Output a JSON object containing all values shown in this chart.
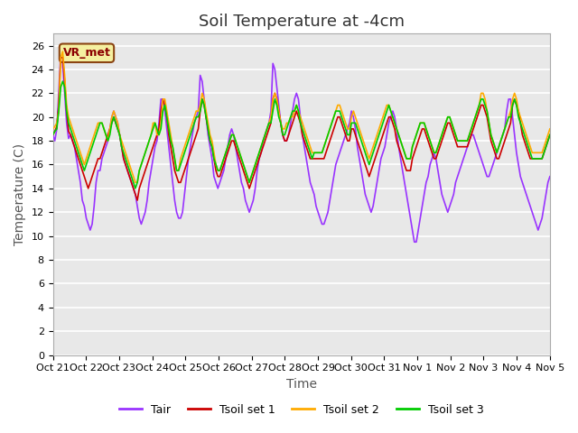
{
  "title": "Soil Temperature at -4cm",
  "xlabel": "Time",
  "ylabel": "Temperature (C)",
  "ylim": [
    0,
    27
  ],
  "yticks": [
    0,
    2,
    4,
    6,
    8,
    10,
    12,
    14,
    16,
    18,
    20,
    22,
    24,
    26
  ],
  "xlabels": [
    "Oct 21",
    "Oct 22",
    "Oct 23",
    "Oct 24",
    "Oct 25",
    "Oct 26",
    "Oct 27",
    "Oct 28",
    "Oct 29",
    "Oct 30",
    "Oct 31",
    "Nov 1",
    "Nov 2",
    "Nov 3",
    "Nov 4",
    "Nov 5"
  ],
  "color_tair": "#9933ff",
  "color_tsoil1": "#cc0000",
  "color_tsoil2": "#ffaa00",
  "color_tsoil3": "#00cc00",
  "label_tair": "Tair",
  "label_tsoil1": "Tsoil set 1",
  "label_tsoil2": "Tsoil set 2",
  "label_tsoil3": "Tsoil set 3",
  "vr_met_label": "VR_met",
  "plot_bg_color": "#e8e8e8",
  "grid_color": "#ffffff",
  "title_fontsize": 13,
  "axis_label_fontsize": 10,
  "tick_fontsize": 8,
  "legend_fontsize": 9,
  "line_width": 1.2,
  "tair": [
    18.5,
    18.0,
    19.0,
    22.0,
    25.5,
    24.5,
    22.0,
    19.5,
    18.2,
    18.5,
    18.0,
    17.5,
    16.5,
    15.5,
    14.5,
    13.0,
    12.5,
    11.5,
    11.0,
    10.5,
    11.0,
    12.5,
    14.5,
    15.5,
    15.5,
    16.5,
    17.0,
    17.5,
    18.0,
    19.0,
    20.0,
    20.5,
    20.0,
    19.5,
    18.5,
    17.5,
    16.5,
    16.0,
    15.5,
    15.0,
    14.5,
    14.0,
    13.5,
    12.5,
    11.5,
    11.0,
    11.5,
    12.0,
    13.0,
    14.5,
    15.5,
    16.5,
    17.5,
    18.0,
    19.5,
    21.5,
    21.5,
    20.5,
    19.0,
    17.5,
    16.0,
    14.5,
    13.0,
    12.0,
    11.5,
    11.5,
    12.0,
    13.5,
    15.0,
    16.5,
    17.5,
    18.5,
    19.5,
    20.0,
    20.5,
    23.5,
    23.0,
    21.5,
    20.0,
    18.5,
    17.5,
    16.5,
    15.0,
    14.5,
    14.0,
    14.5,
    15.0,
    15.5,
    16.5,
    17.5,
    18.5,
    19.0,
    18.5,
    17.5,
    16.5,
    15.5,
    14.5,
    14.0,
    13.0,
    12.5,
    12.0,
    12.5,
    13.0,
    14.0,
    15.5,
    16.5,
    17.0,
    18.0,
    18.5,
    19.0,
    19.5,
    20.5,
    24.5,
    24.0,
    22.5,
    21.0,
    19.5,
    18.5,
    18.0,
    18.0,
    18.5,
    19.5,
    20.5,
    21.5,
    22.0,
    21.5,
    20.0,
    18.5,
    17.5,
    16.5,
    15.5,
    14.5,
    14.0,
    13.5,
    12.5,
    12.0,
    11.5,
    11.0,
    11.0,
    11.5,
    12.0,
    13.0,
    14.0,
    15.0,
    16.0,
    16.5,
    17.0,
    17.5,
    18.0,
    18.5,
    19.0,
    19.5,
    20.5,
    20.0,
    19.0,
    17.5,
    16.5,
    15.5,
    14.5,
    13.5,
    13.0,
    12.5,
    12.0,
    12.5,
    13.5,
    14.5,
    15.5,
    16.5,
    17.0,
    17.5,
    18.5,
    19.5,
    20.0,
    20.5,
    20.0,
    19.0,
    17.5,
    16.5,
    15.5,
    14.5,
    13.5,
    12.5,
    11.5,
    10.5,
    9.5,
    9.5,
    10.5,
    11.5,
    12.5,
    13.5,
    14.5,
    15.0,
    16.0,
    16.5,
    17.0,
    16.5,
    15.5,
    14.5,
    13.5,
    13.0,
    12.5,
    12.0,
    12.5,
    13.0,
    13.5,
    14.5,
    15.0,
    15.5,
    16.0,
    16.5,
    17.0,
    17.5,
    18.0,
    18.5,
    18.5,
    18.0,
    17.5,
    17.0,
    16.5,
    16.0,
    15.5,
    15.0,
    15.0,
    15.5,
    16.0,
    16.5,
    17.0,
    17.5,
    18.0,
    18.5,
    19.0,
    20.5,
    21.5,
    21.5,
    20.0,
    18.5,
    17.0,
    16.0,
    15.0,
    14.5,
    14.0,
    13.5,
    13.0,
    12.5,
    12.0,
    11.5,
    11.0,
    10.5,
    11.0,
    11.5,
    12.5,
    13.5,
    14.5,
    15.0,
    16.0,
    16.5,
    17.0,
    17.5,
    18.5,
    19.5,
    21.5,
    22.0,
    21.5,
    20.0,
    18.5,
    17.5,
    16.5,
    15.5,
    14.5,
    14.0,
    13.5,
    13.0,
    12.5,
    12.0,
    11.5,
    11.0,
    10.5,
    10.0,
    10.5,
    11.5,
    12.5,
    13.5,
    14.5
  ],
  "tsoil1": [
    18.5,
    18.8,
    19.2,
    21.0,
    25.0,
    25.0,
    23.0,
    20.5,
    18.8,
    18.5,
    18.0,
    17.5,
    17.0,
    16.5,
    16.0,
    15.5,
    15.0,
    14.5,
    14.0,
    14.5,
    15.0,
    15.5,
    16.0,
    16.5,
    16.5,
    17.0,
    17.5,
    18.0,
    18.5,
    19.0,
    19.5,
    20.0,
    19.5,
    19.0,
    18.5,
    17.5,
    16.5,
    16.0,
    15.5,
    15.0,
    14.5,
    14.0,
    13.5,
    13.0,
    14.0,
    14.5,
    15.0,
    15.5,
    16.0,
    16.5,
    17.0,
    17.5,
    18.0,
    18.5,
    19.0,
    20.5,
    21.5,
    21.0,
    20.0,
    18.5,
    17.5,
    16.5,
    15.5,
    15.0,
    14.5,
    14.5,
    15.0,
    15.5,
    16.0,
    16.5,
    17.0,
    17.5,
    18.0,
    18.5,
    19.0,
    20.5,
    21.5,
    21.0,
    20.0,
    19.0,
    18.0,
    17.5,
    16.5,
    15.5,
    15.0,
    15.0,
    15.5,
    16.0,
    16.5,
    17.0,
    17.5,
    18.0,
    18.0,
    17.5,
    17.0,
    16.5,
    16.0,
    15.5,
    15.0,
    14.5,
    14.0,
    14.5,
    15.0,
    15.5,
    16.0,
    16.5,
    17.0,
    17.5,
    18.0,
    18.5,
    19.0,
    19.5,
    21.5,
    22.0,
    21.5,
    20.5,
    19.5,
    18.5,
    18.0,
    18.0,
    18.5,
    19.0,
    19.5,
    20.0,
    20.5,
    20.0,
    19.5,
    18.5,
    18.0,
    17.5,
    17.0,
    16.5,
    16.5,
    16.5,
    16.5,
    16.5,
    16.5,
    16.5,
    16.5,
    17.0,
    17.5,
    18.0,
    18.5,
    19.0,
    19.5,
    20.0,
    20.0,
    19.5,
    19.0,
    18.5,
    18.0,
    18.0,
    19.0,
    19.0,
    18.5,
    18.0,
    17.5,
    17.0,
    16.5,
    16.0,
    15.5,
    15.0,
    15.5,
    16.0,
    16.5,
    17.0,
    17.5,
    18.0,
    18.5,
    19.0,
    19.5,
    20.0,
    20.0,
    19.5,
    19.0,
    18.0,
    17.5,
    17.0,
    16.5,
    16.0,
    15.5,
    15.5,
    15.5,
    16.5,
    17.0,
    17.5,
    18.0,
    18.5,
    19.0,
    19.0,
    18.5,
    18.0,
    17.5,
    17.0,
    16.5,
    16.5,
    17.0,
    17.5,
    18.0,
    18.5,
    19.0,
    19.5,
    19.5,
    19.0,
    18.5,
    18.0,
    17.5,
    17.5,
    17.5,
    17.5,
    17.5,
    17.5,
    18.0,
    18.5,
    19.0,
    19.5,
    20.0,
    20.5,
    21.0,
    21.0,
    20.5,
    20.0,
    19.0,
    18.0,
    17.5,
    17.0,
    16.5,
    16.5,
    17.0,
    17.5,
    18.0,
    18.5,
    19.0,
    19.5,
    21.0,
    21.5,
    21.0,
    20.5,
    19.5,
    18.5,
    18.0,
    17.5,
    17.0,
    16.5,
    16.5,
    16.5,
    16.5,
    16.5,
    16.5,
    16.5,
    17.0,
    17.5,
    18.0,
    18.5
  ],
  "tsoil2": [
    19.0,
    19.2,
    19.5,
    20.5,
    25.0,
    25.5,
    23.5,
    21.0,
    20.0,
    19.5,
    19.0,
    18.5,
    18.0,
    17.5,
    17.0,
    16.5,
    16.0,
    16.5,
    17.0,
    17.5,
    18.0,
    18.5,
    19.0,
    19.5,
    19.5,
    19.5,
    19.0,
    18.5,
    18.0,
    19.0,
    20.0,
    20.5,
    20.0,
    19.5,
    18.5,
    18.0,
    17.5,
    17.0,
    16.5,
    16.0,
    15.5,
    15.0,
    14.5,
    14.5,
    15.5,
    16.0,
    16.5,
    17.0,
    17.5,
    18.0,
    18.5,
    19.5,
    19.5,
    18.5,
    18.5,
    19.5,
    21.5,
    21.5,
    20.5,
    19.5,
    18.5,
    17.5,
    16.5,
    15.5,
    15.5,
    16.5,
    17.0,
    17.5,
    18.0,
    18.5,
    19.0,
    19.5,
    20.0,
    20.5,
    20.5,
    21.0,
    22.0,
    21.5,
    20.5,
    19.5,
    18.5,
    18.0,
    17.0,
    16.0,
    15.5,
    15.5,
    16.0,
    16.5,
    17.0,
    17.5,
    18.0,
    18.5,
    18.5,
    18.0,
    17.5,
    17.0,
    16.5,
    16.0,
    15.5,
    15.0,
    14.5,
    15.0,
    15.5,
    16.0,
    16.5,
    17.0,
    17.5,
    18.0,
    18.5,
    19.0,
    19.5,
    20.0,
    21.5,
    22.0,
    21.5,
    20.5,
    19.5,
    19.0,
    19.0,
    19.5,
    19.5,
    20.0,
    20.0,
    20.5,
    21.0,
    20.5,
    20.0,
    19.5,
    19.0,
    18.5,
    18.0,
    17.5,
    17.0,
    17.0,
    17.0,
    17.0,
    17.0,
    17.0,
    17.5,
    18.0,
    18.5,
    19.0,
    19.5,
    20.0,
    20.5,
    21.0,
    21.0,
    20.5,
    20.0,
    19.5,
    19.0,
    19.0,
    20.0,
    20.5,
    20.0,
    19.5,
    19.0,
    18.5,
    18.0,
    17.5,
    17.0,
    16.5,
    17.0,
    17.5,
    18.0,
    18.5,
    19.0,
    19.5,
    20.0,
    20.5,
    21.0,
    21.0,
    20.5,
    20.0,
    19.5,
    19.0,
    18.5,
    18.0,
    17.5,
    17.0,
    16.5,
    16.5,
    16.5,
    17.5,
    18.0,
    18.5,
    19.0,
    19.5,
    19.5,
    19.5,
    19.0,
    18.5,
    18.0,
    17.5,
    17.0,
    17.0,
    17.5,
    18.0,
    18.5,
    19.0,
    19.5,
    20.0,
    20.0,
    19.5,
    19.0,
    18.5,
    18.0,
    18.0,
    18.0,
    18.0,
    18.0,
    18.0,
    18.5,
    19.0,
    19.5,
    20.0,
    20.5,
    21.0,
    22.0,
    22.0,
    21.5,
    20.5,
    19.5,
    18.5,
    18.0,
    17.5,
    17.0,
    17.5,
    18.0,
    18.5,
    19.0,
    19.5,
    20.0,
    20.5,
    21.5,
    22.0,
    21.5,
    20.5,
    20.0,
    19.5,
    19.0,
    18.5,
    18.0,
    17.5,
    17.0,
    17.0,
    17.0,
    17.0,
    17.0,
    17.0,
    17.5,
    18.0,
    18.5,
    19.0
  ],
  "tsoil3": [
    18.5,
    18.8,
    19.0,
    20.5,
    22.5,
    23.0,
    22.5,
    20.5,
    19.5,
    19.0,
    18.5,
    18.0,
    17.5,
    17.0,
    16.5,
    16.0,
    15.5,
    16.0,
    16.5,
    17.0,
    17.5,
    18.0,
    18.5,
    19.0,
    19.5,
    19.5,
    19.0,
    18.5,
    18.0,
    18.5,
    19.5,
    20.0,
    19.5,
    19.0,
    18.5,
    17.5,
    17.0,
    16.5,
    16.0,
    15.5,
    15.0,
    14.5,
    14.0,
    14.5,
    15.5,
    16.0,
    16.5,
    17.0,
    17.5,
    18.0,
    18.5,
    19.0,
    19.5,
    19.0,
    18.5,
    19.0,
    20.5,
    21.0,
    20.0,
    19.0,
    18.0,
    17.5,
    16.5,
    15.5,
    15.5,
    16.0,
    16.5,
    17.0,
    17.5,
    18.0,
    18.5,
    19.0,
    19.5,
    20.0,
    20.0,
    20.5,
    21.5,
    21.0,
    20.0,
    19.0,
    18.0,
    17.5,
    16.5,
    16.0,
    15.5,
    15.5,
    16.0,
    16.5,
    17.0,
    17.5,
    18.0,
    18.5,
    18.5,
    18.0,
    17.5,
    17.0,
    16.5,
    16.0,
    15.5,
    15.0,
    14.5,
    15.0,
    15.5,
    16.0,
    16.5,
    17.0,
    17.5,
    18.0,
    18.5,
    19.0,
    19.5,
    19.5,
    20.5,
    21.5,
    21.0,
    20.0,
    19.5,
    18.5,
    18.5,
    19.0,
    19.5,
    20.0,
    20.5,
    20.5,
    21.0,
    20.5,
    19.5,
    19.0,
    18.5,
    18.0,
    17.5,
    17.0,
    16.5,
    17.0,
    17.0,
    17.0,
    17.0,
    17.0,
    17.5,
    18.0,
    18.5,
    19.0,
    19.5,
    20.0,
    20.5,
    20.5,
    20.5,
    20.0,
    19.5,
    19.0,
    18.5,
    18.5,
    19.5,
    19.5,
    19.5,
    19.0,
    18.5,
    18.0,
    17.5,
    17.0,
    16.5,
    16.0,
    16.5,
    17.0,
    17.5,
    18.0,
    18.5,
    19.0,
    19.5,
    20.0,
    20.5,
    21.0,
    20.5,
    20.0,
    19.5,
    19.0,
    18.5,
    18.0,
    17.5,
    17.0,
    16.5,
    16.5,
    16.5,
    17.5,
    18.0,
    18.5,
    19.0,
    19.5,
    19.5,
    19.5,
    19.0,
    18.5,
    18.0,
    17.5,
    17.0,
    17.0,
    17.5,
    18.0,
    18.5,
    19.0,
    19.5,
    20.0,
    20.0,
    19.5,
    19.0,
    18.5,
    18.0,
    18.0,
    18.0,
    18.0,
    18.0,
    18.0,
    18.5,
    19.0,
    19.5,
    20.0,
    20.5,
    21.0,
    21.5,
    21.5,
    21.0,
    20.5,
    19.5,
    18.5,
    18.0,
    17.5,
    17.0,
    17.5,
    18.0,
    18.5,
    19.0,
    19.5,
    20.0,
    20.0,
    21.0,
    21.5,
    21.0,
    20.0,
    19.5,
    19.0,
    18.5,
    18.0,
    17.5,
    17.0,
    16.5,
    16.5,
    16.5,
    16.5,
    16.5,
    16.5,
    17.0,
    17.5,
    18.0,
    18.5
  ]
}
